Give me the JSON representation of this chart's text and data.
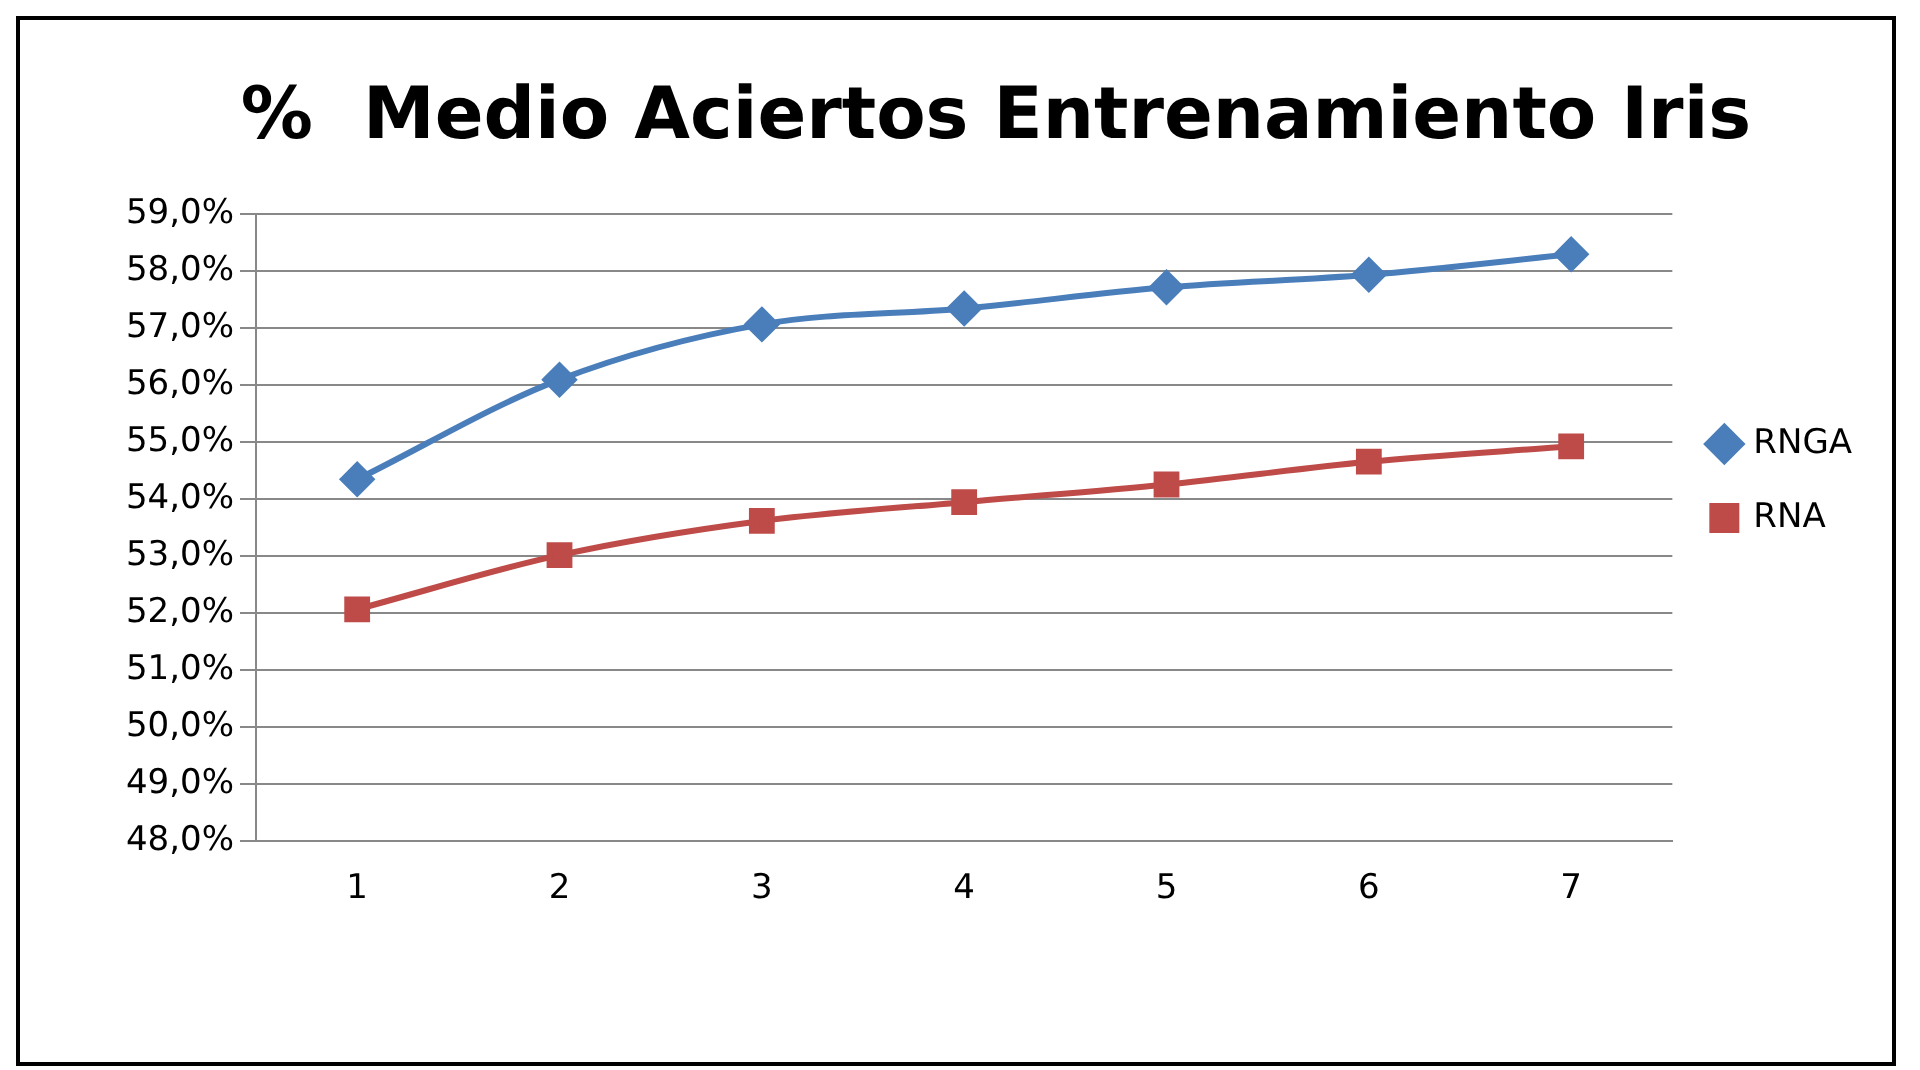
{
  "chart_data": {
    "type": "line",
    "title": "%  Medio Aciertos Entrenamiento Iris",
    "categories": [
      "1",
      "2",
      "3",
      "4",
      "5",
      "6",
      "7"
    ],
    "series": [
      {
        "name": "RNGA",
        "color": "#4a7ebb",
        "marker": "diamond",
        "values": [
          54.35,
          56.1,
          57.07,
          57.35,
          57.72,
          57.94,
          58.3
        ]
      },
      {
        "name": "RNA",
        "color": "#be4b48",
        "marker": "square",
        "values": [
          52.07,
          53.02,
          53.62,
          53.95,
          54.26,
          54.66,
          54.93
        ]
      }
    ],
    "ylim": [
      48,
      59
    ],
    "yticks": [
      {
        "value": 48,
        "label": "48,0%"
      },
      {
        "value": 49,
        "label": "49,0%"
      },
      {
        "value": 50,
        "label": "50,0%"
      },
      {
        "value": 51,
        "label": "51,0%"
      },
      {
        "value": 52,
        "label": "52,0%"
      },
      {
        "value": 53,
        "label": "53,0%"
      },
      {
        "value": 54,
        "label": "54,0%"
      },
      {
        "value": 55,
        "label": "55,0%"
      },
      {
        "value": 56,
        "label": "56,0%"
      },
      {
        "value": 57,
        "label": "57,0%"
      },
      {
        "value": 58,
        "label": "58,0%"
      },
      {
        "value": 59,
        "label": "59,0%"
      }
    ],
    "grid": "y",
    "legend": "right",
    "line_style": "solid"
  }
}
